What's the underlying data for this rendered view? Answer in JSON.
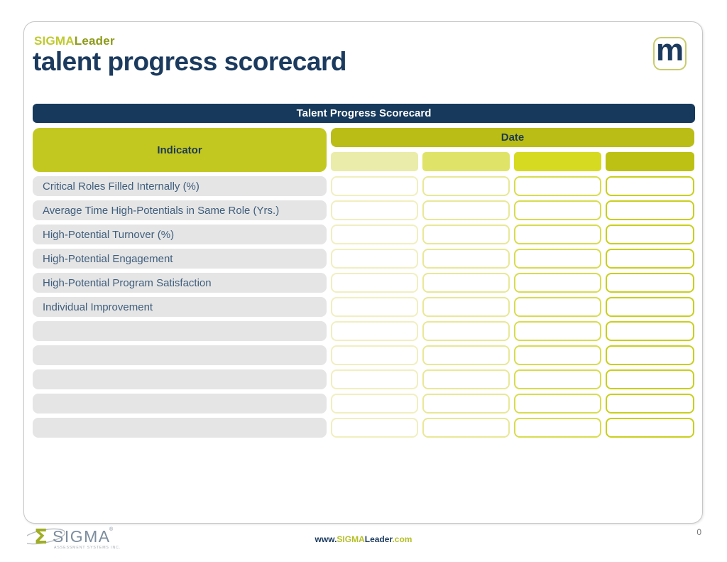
{
  "slide": {
    "brand": {
      "sigma": "SIGMA",
      "leader": "Leader"
    },
    "title": "talent progress scorecard",
    "m_logo_letter": "m",
    "page_number": "0"
  },
  "table": {
    "title": "Talent Progress Scorecard",
    "indicator_header": "Indicator",
    "date_header": "Date",
    "date_columns": [
      "",
      "",
      "",
      ""
    ],
    "rows": [
      {
        "indicator": "Critical Roles Filled Internally (%)",
        "values": [
          "",
          "",
          "",
          ""
        ]
      },
      {
        "indicator": "Average Time High-Potentials in Same Role (Yrs.)",
        "values": [
          "",
          "",
          "",
          ""
        ]
      },
      {
        "indicator": "High-Potential Turnover (%)",
        "values": [
          "",
          "",
          "",
          ""
        ]
      },
      {
        "indicator": "High-Potential Engagement",
        "values": [
          "",
          "",
          "",
          ""
        ]
      },
      {
        "indicator": "High-Potential Program Satisfaction",
        "values": [
          "",
          "",
          "",
          ""
        ]
      },
      {
        "indicator": "Individual Improvement",
        "values": [
          "",
          "",
          "",
          ""
        ]
      },
      {
        "indicator": "",
        "values": [
          "",
          "",
          "",
          ""
        ]
      },
      {
        "indicator": "",
        "values": [
          "",
          "",
          "",
          ""
        ]
      },
      {
        "indicator": "",
        "values": [
          "",
          "",
          "",
          ""
        ]
      },
      {
        "indicator": "",
        "values": [
          "",
          "",
          "",
          ""
        ]
      },
      {
        "indicator": "",
        "values": [
          "",
          "",
          "",
          ""
        ]
      }
    ]
  },
  "footer": {
    "logo": {
      "symbol": "Σ",
      "name": "SIGMA",
      "registered": "®",
      "tagline": "ASSESSMENT SYSTEMS INC."
    },
    "website": {
      "www": "www.",
      "sigma": "SIGMA",
      "leader": "Leader",
      "com": ".com"
    }
  },
  "colors": {
    "navy_bar": "#16395c",
    "title_text": "#1b3a5e",
    "brand_sigma": "#bfca2e",
    "brand_leader": "#8d9b1a",
    "indicator_header_bg": "#c3c821",
    "date_header_bg": "#b9bd16",
    "date_subheaders": [
      "#eaeca9",
      "#dfe368",
      "#d6da21",
      "#bcc113"
    ],
    "cell_borders": [
      "#f1efbf",
      "#e8e897",
      "#d8dc4e",
      "#c9cf1c"
    ],
    "row_bg": "#e5e5e5",
    "row_text": "#3f5e7d",
    "website_olive": "#b5bf28"
  }
}
